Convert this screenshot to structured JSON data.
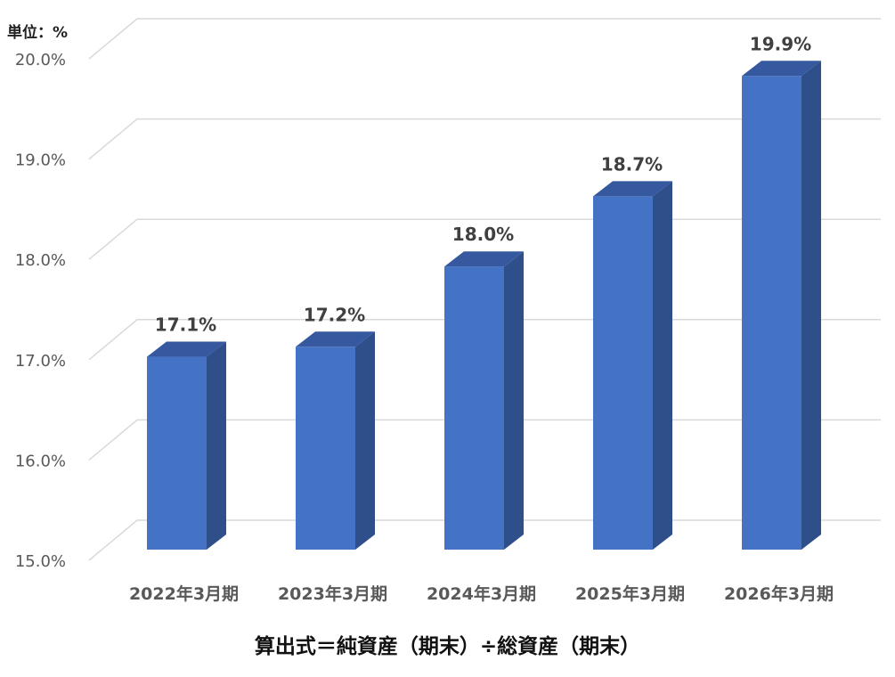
{
  "unit_label": "単位：%",
  "formula": "算出式＝純資産（期末）÷総資産（期末）",
  "chart_data": {
    "type": "bar",
    "categories": [
      "2022年3月期",
      "2023年3月期",
      "2024年3月期",
      "2025年3月期",
      "2026年3月期"
    ],
    "values": [
      17.1,
      17.2,
      18.0,
      18.7,
      19.9
    ],
    "data_labels": [
      "17.1%",
      "17.2%",
      "18.0%",
      "18.7%",
      "19.9%"
    ],
    "ylim": [
      15.0,
      20.0
    ],
    "yticks": [
      15.0,
      16.0,
      17.0,
      18.0,
      19.0,
      20.0
    ],
    "ytick_labels": [
      "15.0%",
      "16.0%",
      "17.0%",
      "18.0%",
      "19.0%",
      "20.0%"
    ],
    "grid": true,
    "style": "3d",
    "colors": {
      "bar_front": "#4472C4",
      "bar_side": "#2F4F8A",
      "bar_top": "#35589E",
      "grid": "#D9D9D9",
      "text": "#595959"
    }
  }
}
